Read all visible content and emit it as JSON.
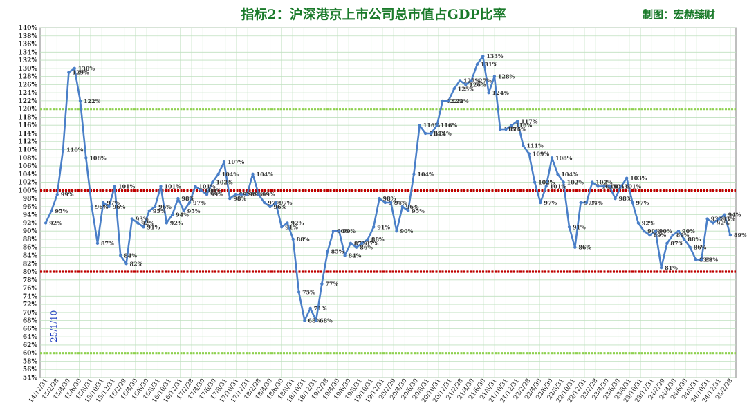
{
  "header": {
    "title": "指标2：沪深港京上市公司总市值占GDP比率",
    "maker": "制图：宏赫臻财"
  },
  "chart_data": {
    "type": "line",
    "title": "指标2：沪深港京上市公司总市值占GDP比率",
    "ylim": [
      54,
      140
    ],
    "ytick_step": 2,
    "ytick_format": "percent",
    "grid": true,
    "legend": "none",
    "annotation": "25/1/10",
    "reference_lines": [
      {
        "value": 120,
        "color": "#8fd14f",
        "style": "dotted"
      },
      {
        "value": 100,
        "color": "#c00000",
        "style": "dotted"
      },
      {
        "value": 80,
        "color": "#c00000",
        "style": "dotted"
      },
      {
        "value": 60,
        "color": "#8fd14f",
        "style": "dotted"
      }
    ],
    "series_color": "#4a7fc8",
    "x_ticks": [
      "14/12/31",
      "15/2/28",
      "15/4/30",
      "15/6/30",
      "15/8/31",
      "15/10/31",
      "15/12/31",
      "16/2/29",
      "16/4/30",
      "16/6/30",
      "16/8/31",
      "16/10/31",
      "16/12/31",
      "17/2/28",
      "17/4/30",
      "17/6/30",
      "17/8/31",
      "17/10/31",
      "17/12/31",
      "18/2/28",
      "18/4/30",
      "18/6/30",
      "18/8/31",
      "18/10/31",
      "18/12/31",
      "19/2/28",
      "19/4/30",
      "19/6/30",
      "19/8/31",
      "19/10/31",
      "19/12/31",
      "20/2/29",
      "20/4/30",
      "20/6/30",
      "20/8/31",
      "20/10/31",
      "20/12/31",
      "21/2/28",
      "21/4/30",
      "21/6/30",
      "21/8/31",
      "21/10/31",
      "21/12/31",
      "22/2/28",
      "22/4/30",
      "22/6/30",
      "22/8/31",
      "22/10/31",
      "22/12/31",
      "23/2/28",
      "23/4/30",
      "23/6/30",
      "23/8/31",
      "23/10/31",
      "23/12/31",
      "24/2/29",
      "24/4/30",
      "24/6/30",
      "24/8/31",
      "24/10/31",
      "24/12/31",
      "25/2/28"
    ],
    "values": [
      92,
      95,
      99,
      110,
      129,
      130,
      122,
      108,
      96,
      87,
      97,
      96,
      101,
      84,
      82,
      93,
      92,
      91,
      95,
      96,
      101,
      92,
      94,
      98,
      95,
      97,
      101,
      100,
      99,
      102,
      104,
      107,
      98,
      99,
      99,
      99,
      104,
      99,
      97,
      96,
      97,
      91,
      92,
      88,
      75,
      68,
      71,
      68,
      77,
      85,
      90,
      90,
      84,
      87,
      86,
      87,
      88,
      91,
      98,
      97,
      97,
      90,
      96,
      95,
      104,
      116,
      114,
      114,
      116,
      122,
      122,
      125,
      127,
      126,
      127,
      131,
      133,
      124,
      128,
      115,
      115,
      116,
      117,
      111,
      109,
      102,
      97,
      101,
      108,
      104,
      102,
      91,
      86,
      97,
      97,
      102,
      101,
      101,
      101,
      98,
      101,
      103,
      97,
      92,
      90,
      89,
      90,
      81,
      87,
      89,
      90,
      88,
      86,
      83,
      83,
      93,
      92,
      93,
      94,
      89
    ],
    "point_labels": [
      "92%",
      "95%",
      "99%",
      "110%",
      "129%",
      "130%",
      "122%",
      "108%",
      "96%",
      "87%",
      "97%",
      "96%",
      "101%",
      "84%",
      "82%",
      "93%",
      "92%",
      "91%",
      "95%",
      "96%",
      "101%",
      "92%",
      "94%",
      "98%",
      "95%",
      "97%",
      "101%",
      "100%",
      "99%",
      "102%",
      "104%",
      "107%",
      "98%",
      "99%",
      "99%",
      "99%",
      "104%",
      "99%",
      "97%",
      "96%",
      "97%",
      "91%",
      "92%",
      "88%",
      "75%",
      "68%",
      "71%",
      "68%",
      "77%",
      "85%",
      "90%",
      "90%",
      "84%",
      "87%",
      "86%",
      "87%",
      "88%",
      "91%",
      "98%",
      "97%",
      "97%",
      "90%",
      "96%",
      "95%",
      "104%",
      "116%",
      "114%",
      "114%",
      "116%",
      "122%",
      "122%",
      "125%",
      "127%",
      "126%",
      "127%",
      "131%",
      "133%",
      "124%",
      "128%",
      "115%",
      "115%",
      "116%",
      "117%",
      "111%",
      "109%",
      "102%",
      "97%",
      "101%",
      "108%",
      "104%",
      "102%",
      "91%",
      "86%",
      "97%",
      "97%",
      "102%",
      "101%",
      "101%",
      "101%",
      "98%",
      "101%",
      "103%",
      "97%",
      "92%",
      "90%",
      "89%",
      "90%",
      "81%",
      "87%",
      "89%",
      "90%",
      "88%",
      "86%",
      "83%",
      "83%",
      "93%",
      "92%",
      "93%",
      "94%",
      "89%"
    ]
  }
}
